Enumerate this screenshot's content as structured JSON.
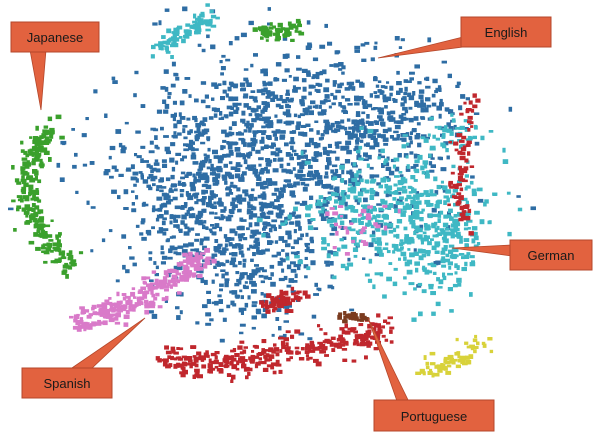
{
  "labels": {
    "japanese": "Japanese",
    "english": "English",
    "german": "German",
    "spanish": "Spanish",
    "portuguese": "Portuguese"
  },
  "colors": {
    "english": "#2e6da4",
    "german": "#3fb8c4",
    "japanese": "#3aa02c",
    "spanish": "#d97ac9",
    "portuguese": "#7a3b1f",
    "red_cluster": "#c0272d",
    "yellow_cluster": "#d8d23a",
    "callout_fill": "#e2623f",
    "callout_stroke": "#b4472b"
  }
}
